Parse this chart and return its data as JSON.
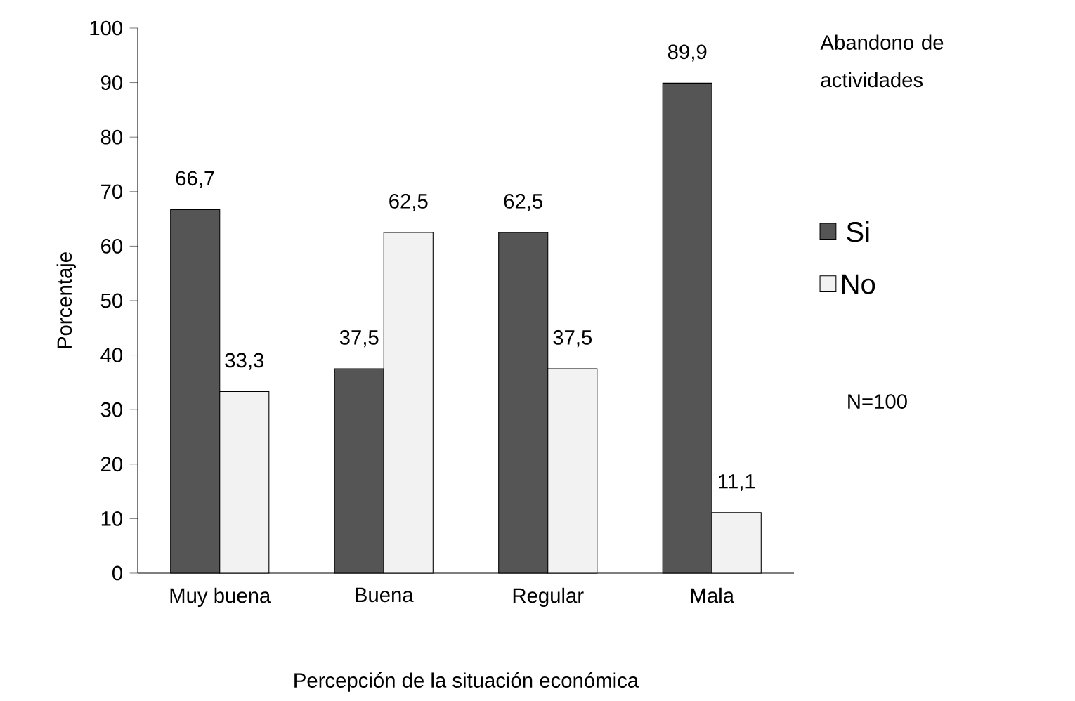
{
  "chart_data": {
    "type": "bar",
    "xlabel": "Percepción de la situación económica",
    "ylabel": "Porcentaje",
    "legend_title": "Abandono de actividades",
    "categories": [
      "Muy buena",
      "Buena",
      "Regular",
      "Mala"
    ],
    "series": [
      {
        "name": "Si",
        "color": "#555555",
        "values": [
          66.7,
          37.5,
          62.5,
          89.9
        ],
        "value_labels": [
          "66,7",
          "37,5",
          "62,5",
          "89,9"
        ]
      },
      {
        "name": "No",
        "color": "#f2f2f2",
        "values": [
          33.3,
          62.5,
          37.5,
          11.1
        ],
        "value_labels": [
          "33,3",
          "62,5",
          "37,5",
          "11,1"
        ]
      }
    ],
    "ylim": [
      0,
      100
    ],
    "yticks": [
      0,
      10,
      20,
      30,
      40,
      50,
      60,
      70,
      80,
      90,
      100
    ],
    "grid": false,
    "legend": "right",
    "annotations": [
      "N=100"
    ]
  }
}
